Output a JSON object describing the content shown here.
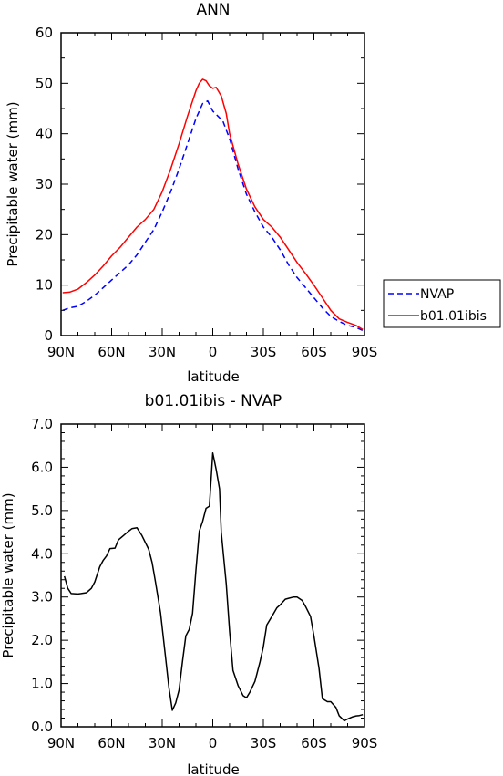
{
  "chart_data": [
    {
      "type": "line",
      "title": "ANN",
      "xlabel": "latitude",
      "ylabel": "Precipitable water (mm)",
      "xlim": [
        90,
        -90
      ],
      "ylim": [
        0,
        60
      ],
      "x_ticks": [
        90,
        60,
        30,
        0,
        -30,
        -60,
        -90
      ],
      "x_tick_labels": [
        "90N",
        "60N",
        "30N",
        "0",
        "30S",
        "60S",
        "90S"
      ],
      "y_ticks": [
        0,
        10,
        20,
        30,
        40,
        50,
        60
      ],
      "y_tick_labels": [
        "0",
        "10",
        "20",
        "30",
        "40",
        "50",
        "60"
      ],
      "legend_position": "right",
      "series": [
        {
          "name": "NVAP",
          "color": "#0000ff",
          "dash": "dashed",
          "x": [
            89,
            85,
            80,
            75,
            70,
            65,
            60,
            55,
            50,
            45,
            40,
            35,
            30,
            25,
            20,
            15,
            10,
            6,
            3,
            0,
            -3,
            -6,
            -10,
            -15,
            -20,
            -25,
            -30,
            -35,
            -40,
            -45,
            -50,
            -55,
            -60,
            -65,
            -70,
            -75,
            -80,
            -85,
            -89
          ],
          "values": [
            5.0,
            5.5,
            5.8,
            6.8,
            8.0,
            9.5,
            11.0,
            12.5,
            14.0,
            16.0,
            18.5,
            21.0,
            24.5,
            28.5,
            33.0,
            38.0,
            43.0,
            46.0,
            46.5,
            44.5,
            43.5,
            42.5,
            39.0,
            33.0,
            28.0,
            24.5,
            21.5,
            19.5,
            17.0,
            14.0,
            11.5,
            9.5,
            7.5,
            5.5,
            3.8,
            2.8,
            2.0,
            1.6,
            1.0
          ]
        },
        {
          "name": "b01.01ibis",
          "color": "#ff0000",
          "dash": "solid",
          "x": [
            89,
            85,
            80,
            75,
            70,
            65,
            60,
            55,
            50,
            45,
            40,
            35,
            30,
            25,
            20,
            15,
            10,
            8,
            6,
            4,
            2,
            0,
            -2,
            -5,
            -8,
            -10,
            -15,
            -20,
            -25,
            -30,
            -35,
            -40,
            -45,
            -50,
            -55,
            -60,
            -65,
            -70,
            -75,
            -80,
            -85,
            -89
          ],
          "values": [
            8.5,
            8.6,
            9.2,
            10.5,
            12.0,
            13.8,
            15.8,
            17.5,
            19.5,
            21.5,
            23.0,
            25.0,
            28.5,
            33.0,
            38.0,
            43.5,
            48.5,
            50.0,
            50.8,
            50.5,
            49.5,
            49.0,
            49.2,
            47.5,
            44.0,
            40.0,
            34.0,
            29.0,
            25.5,
            23.0,
            21.5,
            19.5,
            17.0,
            14.5,
            12.3,
            10.0,
            7.5,
            5.0,
            3.3,
            2.6,
            2.0,
            1.2
          ]
        }
      ]
    },
    {
      "type": "line",
      "title": "b01.01ibis - NVAP",
      "xlabel": "latitude",
      "ylabel": "Precipitable water (mm)",
      "xlim": [
        90,
        -90
      ],
      "ylim": [
        0,
        7
      ],
      "x_ticks": [
        90,
        60,
        30,
        0,
        -30,
        -60,
        -90
      ],
      "x_tick_labels": [
        "90N",
        "60N",
        "30N",
        "0",
        "30S",
        "60S",
        "90S"
      ],
      "y_ticks": [
        0,
        1,
        2,
        3,
        4,
        5,
        6,
        7
      ],
      "y_tick_labels": [
        "0.0",
        "1.0",
        "2.0",
        "3.0",
        "4.0",
        "5.0",
        "6.0",
        "7.0"
      ],
      "series": [
        {
          "color": "#000000",
          "dash": "solid",
          "x": [
            88,
            86,
            84,
            80,
            78,
            75,
            72,
            70,
            67,
            65,
            63,
            61,
            58,
            56,
            53,
            50,
            48,
            45,
            42,
            38,
            36,
            34,
            31,
            28,
            26,
            24,
            22,
            20,
            18,
            16,
            14,
            12,
            10,
            8,
            6,
            4,
            2,
            0,
            -2,
            -4,
            -5,
            -8,
            -10,
            -12,
            -15,
            -18,
            -20,
            -22,
            -25,
            -28,
            -30,
            -32,
            -35,
            -38,
            -40,
            -43,
            -45,
            -48,
            -50,
            -53,
            -55,
            -58,
            -60,
            -63,
            -65,
            -68,
            -70,
            -73,
            -75,
            -78,
            -80,
            -83,
            -85,
            -87,
            -89
          ],
          "values": [
            3.48,
            3.2,
            3.08,
            3.07,
            3.08,
            3.1,
            3.2,
            3.35,
            3.7,
            3.85,
            3.95,
            4.12,
            4.13,
            4.32,
            4.42,
            4.52,
            4.58,
            4.6,
            4.42,
            4.1,
            3.8,
            3.35,
            2.63,
            1.6,
            0.9,
            0.38,
            0.55,
            0.85,
            1.5,
            2.1,
            2.25,
            2.62,
            3.62,
            4.52,
            4.75,
            5.05,
            5.1,
            6.33,
            5.95,
            5.5,
            4.5,
            3.3,
            2.2,
            1.3,
            0.95,
            0.72,
            0.67,
            0.8,
            1.05,
            1.5,
            1.85,
            2.35,
            2.55,
            2.75,
            2.82,
            2.95,
            2.97,
            3.0,
            3.0,
            2.92,
            2.78,
            2.55,
            2.1,
            1.35,
            0.65,
            0.58,
            0.58,
            0.45,
            0.25,
            0.14,
            0.18,
            0.23,
            0.25,
            0.26,
            0.28
          ]
        }
      ]
    }
  ]
}
